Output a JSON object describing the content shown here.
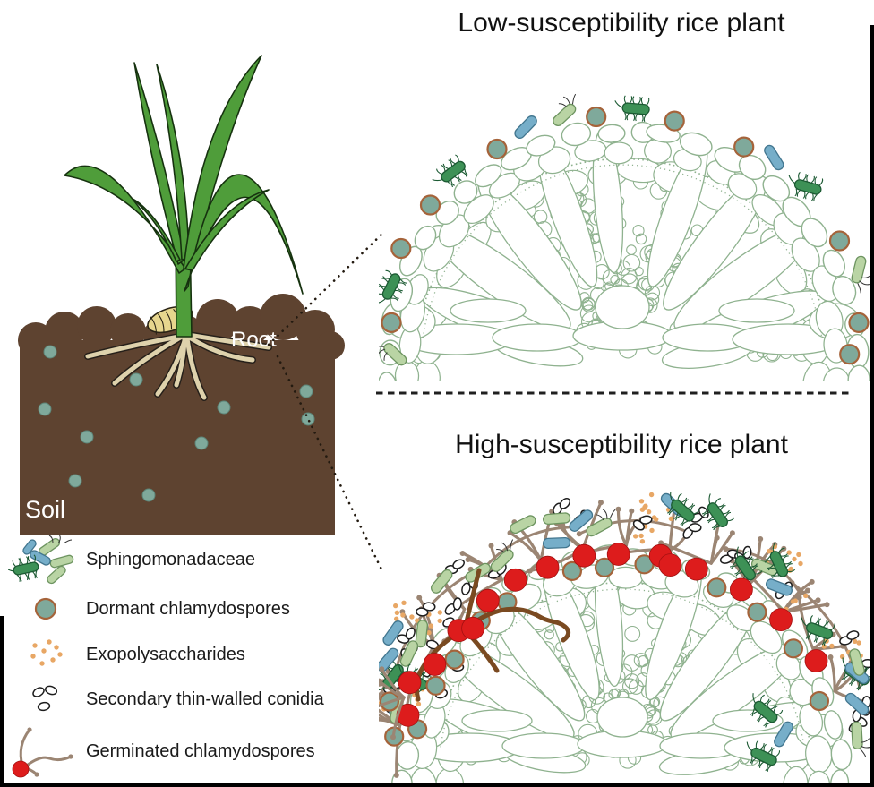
{
  "titles": {
    "low": "Low-susceptibility rice plant",
    "high": "High-susceptibility rice plant"
  },
  "scene": {
    "soil_label": "Soil",
    "root_label": "Root"
  },
  "legend": {
    "items": [
      {
        "id": "sphingomonadaceae",
        "label": "Sphingomonadaceae"
      },
      {
        "id": "dormant-chlamydospores",
        "label": "Dormant chlamydospores"
      },
      {
        "id": "exopolysaccharides",
        "label": "Exopolysaccharides"
      },
      {
        "id": "secondary-thin-walled-conidia",
        "label": "Secondary thin-walled conidia"
      },
      {
        "id": "germinated-chlamydospores",
        "label": "Germinated chlamydospores"
      }
    ]
  },
  "colors": {
    "cell_outline": "#8fb28f",
    "soil": "#5e4330",
    "spore_teal": "#7fa99b",
    "spore_rim": "#a5633a",
    "red": "#dd1c1c",
    "eps": "#e8a765",
    "hypha": "#9b8573",
    "dark_hypha": "#7a4a21",
    "bact_lightgreen": "#b9d4a4",
    "bact_lightgreen_stroke": "#6d9460",
    "bact_blue": "#76aec9",
    "bact_blue_stroke": "#42768f",
    "bact_darkgreen": "#3d9156",
    "bact_darkgreen_stroke": "#1c5a33",
    "leaf": "#4f9d3a",
    "leaf_stroke": "#16320f",
    "root_fill": "#ded2ac",
    "seed": "#e7d68e",
    "divider": "#1f1f1f",
    "text": "#111111"
  }
}
